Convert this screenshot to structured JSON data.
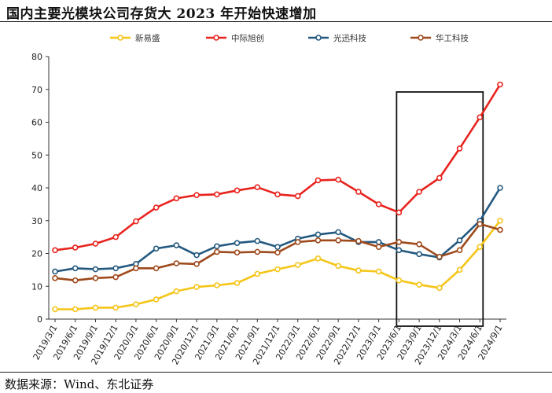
{
  "header": {
    "title": "国内主要光模块公司存货大 2023 年开始快速增加"
  },
  "footer": {
    "source": "数据来源：Wind、东北证券"
  },
  "chart_data": {
    "type": "line",
    "title": "国内主要光模块公司存货大 2023 年开始快速增加",
    "xlabel": "",
    "ylabel": "",
    "ylim": [
      0,
      80
    ],
    "yticks": [
      0,
      10,
      20,
      30,
      40,
      50,
      60,
      70,
      80
    ],
    "grid": false,
    "legend": "top",
    "categories": [
      "2019/3/1",
      "2019/6/1",
      "2019/9/1",
      "2019/12/1",
      "2020/3/1",
      "2020/6/1",
      "2020/9/1",
      "2020/12/1",
      "2021/3/1",
      "2021/6/1",
      "2021/9/1",
      "2021/12/1",
      "2022/3/1",
      "2022/6/1",
      "2022/9/1",
      "2022/12/1",
      "2023/3/1",
      "2023/6/1",
      "2023/9/1",
      "2023/12/1",
      "2024/3/1",
      "2024/6/1",
      "2024/9/1"
    ],
    "series": [
      {
        "name": "新易盛",
        "color": "#F5C518",
        "values": [
          3.0,
          3.0,
          3.5,
          3.5,
          4.5,
          6.0,
          8.5,
          9.8,
          10.3,
          11.0,
          13.8,
          15.2,
          16.5,
          18.5,
          16.2,
          14.8,
          14.5,
          11.8,
          10.5,
          9.5,
          15.0,
          22.0,
          30.0
        ]
      },
      {
        "name": "中际旭创",
        "color": "#E8231E",
        "values": [
          21.0,
          21.8,
          23.0,
          25.0,
          29.8,
          34.0,
          36.8,
          37.8,
          38.0,
          39.2,
          40.2,
          38.0,
          37.5,
          42.3,
          42.5,
          38.8,
          35.0,
          32.5,
          38.8,
          43.0,
          52.0,
          61.5,
          71.5
        ]
      },
      {
        "name": "光迅科技",
        "color": "#24597F",
        "values": [
          14.5,
          15.5,
          15.2,
          15.5,
          16.8,
          21.5,
          22.5,
          19.5,
          22.2,
          23.2,
          23.8,
          22.0,
          24.5,
          25.8,
          26.5,
          23.5,
          23.5,
          21.0,
          19.8,
          18.8,
          24.0,
          30.0,
          40.0
        ]
      },
      {
        "name": "华工科技",
        "color": "#9E4A1C",
        "values": [
          12.5,
          11.8,
          12.5,
          12.8,
          15.5,
          15.5,
          17.0,
          16.8,
          20.5,
          20.3,
          20.5,
          20.3,
          23.5,
          24.0,
          24.0,
          23.8,
          22.0,
          23.5,
          22.8,
          19.0,
          21.0,
          29.0,
          27.2
        ]
      }
    ],
    "highlight_range": [
      "2023/6/1",
      "2024/6/1"
    ],
    "x_tick_rotation": -60
  }
}
